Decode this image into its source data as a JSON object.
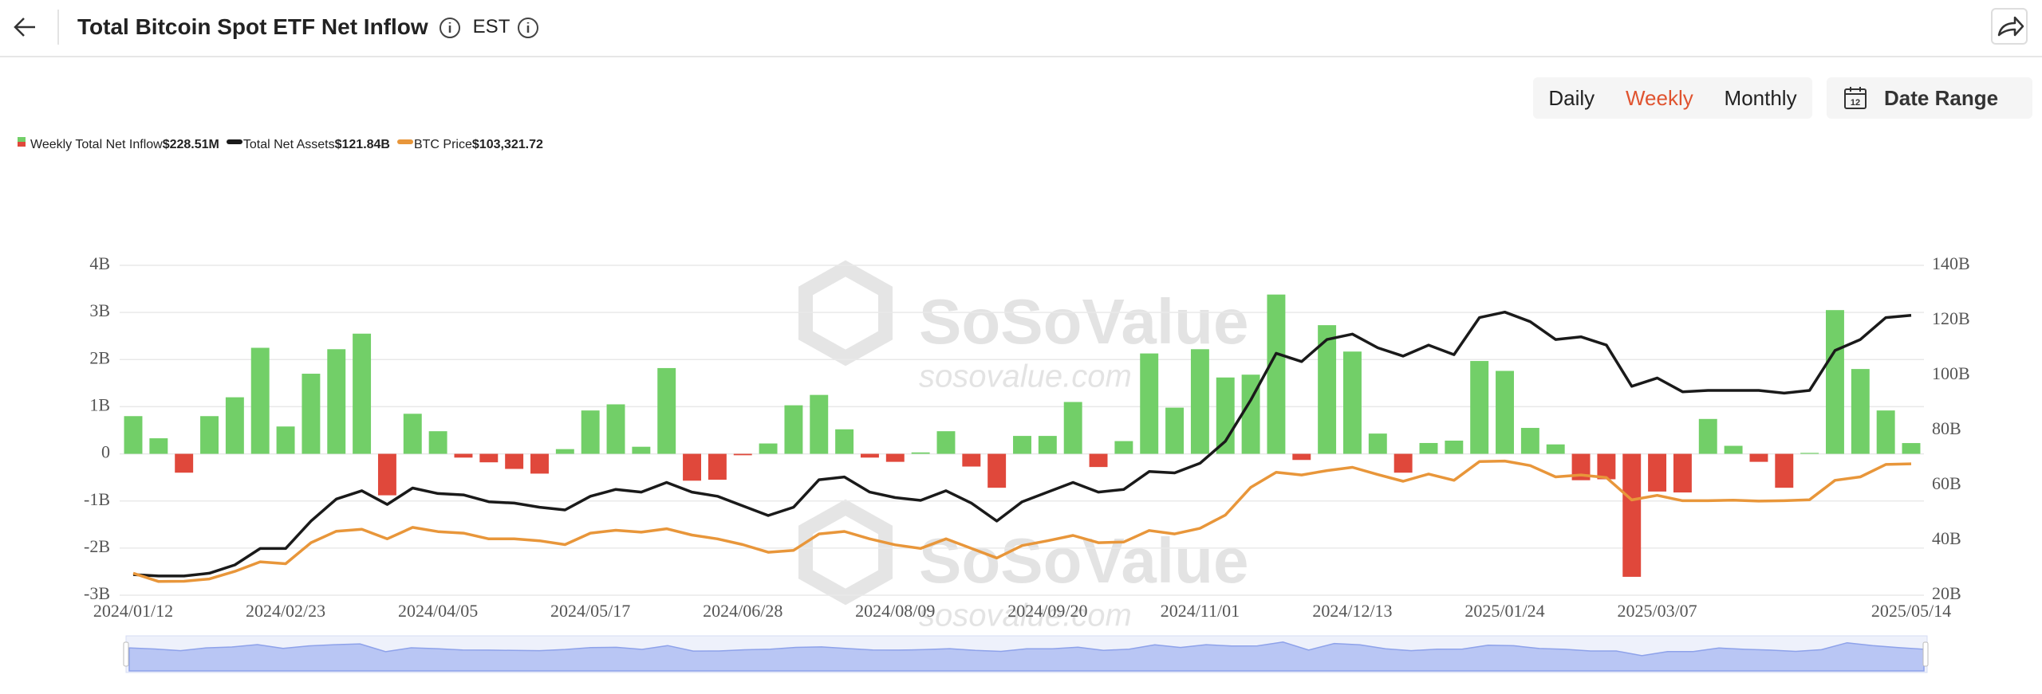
{
  "header": {
    "title": "Total Bitcoin Spot ETF Net Inflow",
    "timezone": "EST"
  },
  "controls": {
    "intervals": [
      "Daily",
      "Weekly",
      "Monthly"
    ],
    "active": "Weekly",
    "date_range": "Date Range"
  },
  "watermark": [
    "SoSoValue",
    "sosovalue.com"
  ],
  "chart_data": {
    "type": "bar",
    "categories": [
      "2024/01/12",
      null,
      null,
      null,
      null,
      null,
      "2024/02/23",
      null,
      null,
      null,
      null,
      null,
      "2024/04/05",
      null,
      null,
      null,
      null,
      null,
      "2024/05/17",
      null,
      null,
      null,
      null,
      null,
      "2024/06/28",
      null,
      null,
      null,
      null,
      null,
      "2024/08/09",
      null,
      null,
      null,
      null,
      null,
      "2024/09/20",
      null,
      null,
      null,
      null,
      null,
      "2024/11/01",
      null,
      null,
      null,
      null,
      null,
      "2024/12/13",
      null,
      null,
      null,
      null,
      null,
      "2025/01/24",
      null,
      null,
      null,
      null,
      null,
      "2025/03/07",
      null,
      null,
      null,
      null,
      null,
      null,
      null,
      null,
      null,
      "2025/05/14"
    ],
    "series": [
      {
        "name": "Weekly Total Net Inflow",
        "summary": "$228.51M",
        "color": "#72cf68",
        "negative_color": "#e0483b",
        "values": [
          0.8,
          0.33,
          -0.4,
          0.8,
          1.2,
          2.25,
          0.58,
          1.7,
          2.22,
          2.55,
          -0.88,
          0.85,
          0.48,
          -0.08,
          -0.18,
          -0.32,
          -0.42,
          0.1,
          0.92,
          1.05,
          0.15,
          1.82,
          -0.57,
          -0.55,
          -0.03,
          0.22,
          1.03,
          1.25,
          0.52,
          -0.08,
          -0.17,
          0.03,
          0.48,
          -0.27,
          -0.72,
          0.38,
          0.38,
          1.1,
          -0.28,
          0.27,
          2.13,
          0.98,
          2.22,
          1.62,
          1.68,
          3.38,
          -0.13,
          2.73,
          2.17,
          0.43,
          -0.4,
          0.23,
          0.28,
          1.97,
          1.76,
          0.55,
          0.2,
          -0.56,
          -0.54,
          -2.61,
          -0.8,
          -0.82,
          0.74,
          0.17,
          -0.17,
          -0.72,
          0.02,
          3.05,
          1.8,
          0.92,
          0.22851
        ]
      },
      {
        "name": "Total Net Assets",
        "summary": "$121.84B",
        "color": "#1a1a1a",
        "axis": "y2",
        "values": [
          27.5,
          27,
          27,
          28,
          31,
          37,
          37,
          47,
          55,
          58,
          53,
          59,
          57,
          56.5,
          54,
          53.5,
          52,
          51,
          56,
          58.5,
          57.5,
          61,
          57.5,
          56,
          52.5,
          49,
          52,
          62,
          63,
          57.5,
          55.5,
          54.5,
          58,
          53.5,
          47,
          54,
          57.5,
          61,
          57.5,
          58.5,
          65,
          64.5,
          68,
          76,
          91,
          108,
          105,
          113,
          115,
          110,
          107,
          111,
          107.5,
          121,
          123,
          119.5,
          113,
          114,
          111,
          96,
          99,
          94,
          94.5,
          94.5,
          94.5,
          93.5,
          94.5,
          109,
          113,
          121,
          121.84
        ]
      },
      {
        "name": "BTC Price",
        "summary": "$103,321.72",
        "color": "#e8963a",
        "axis": "y3",
        "values": [
          46000,
          41700,
          41800,
          43000,
          47000,
          52000,
          51000,
          62000,
          68000,
          69000,
          64000,
          70000,
          67800,
          67000,
          64000,
          64000,
          63000,
          61000,
          67000,
          68500,
          67500,
          69300,
          66000,
          64000,
          61000,
          57000,
          58000,
          66600,
          67900,
          64000,
          60900,
          59000,
          64000,
          59000,
          54000,
          60500,
          63000,
          65800,
          62000,
          62400,
          68400,
          66600,
          69500,
          76500,
          91000,
          98900,
          97500,
          99800,
          101500,
          97700,
          94200,
          98000,
          94700,
          104500,
          104800,
          102400,
          96500,
          97500,
          96100,
          84400,
          86800,
          84000,
          84000,
          84300,
          83800,
          84000,
          84500,
          94700,
          96500,
          103000,
          103321.72
        ]
      }
    ],
    "ylim": [
      -3,
      4
    ],
    "yticks": [
      {
        "value": -3,
        "label": "-3B"
      },
      {
        "value": -2,
        "label": "-2B"
      },
      {
        "value": -1,
        "label": "-1B"
      },
      0,
      {
        "value": 1,
        "label": "1B"
      },
      {
        "value": 2,
        "label": "2B"
      },
      {
        "value": 3,
        "label": "3B"
      },
      {
        "value": 4,
        "label": "4B"
      }
    ],
    "y2lim": [
      20,
      140
    ],
    "y2ticks": [
      {
        "value": 20,
        "label": "20B"
      },
      {
        "value": 40,
        "label": "40B"
      },
      {
        "value": 60,
        "label": "60B"
      },
      {
        "value": 80,
        "label": "80B"
      },
      {
        "value": 100,
        "label": "100B"
      },
      {
        "value": 120,
        "label": "120B"
      },
      {
        "value": 140,
        "label": "140B"
      }
    ],
    "y3lim": [
      34500,
      207300
    ],
    "grid": true
  }
}
